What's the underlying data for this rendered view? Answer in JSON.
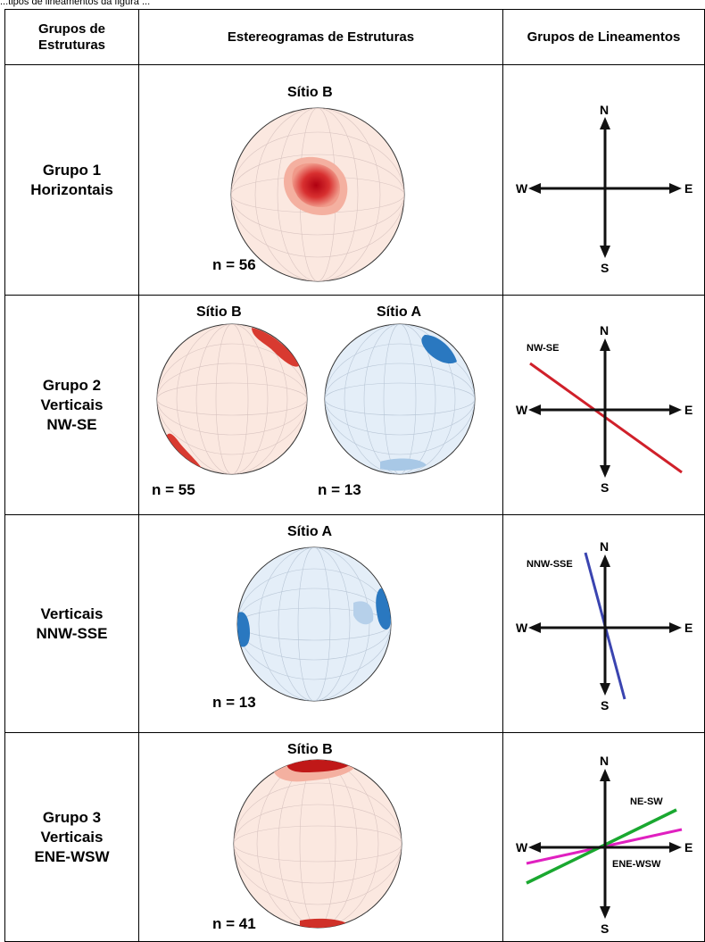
{
  "caption": "...tipos de lineamentos da figura ...",
  "headers": {
    "col1_line1": "Grupos de",
    "col1_line2": "Estruturas",
    "col2": "Estereogramas de Estruturas",
    "col3": "Grupos de Lineamentos"
  },
  "rows": [
    {
      "group_lines": [
        "Grupo 1",
        "Horizontais"
      ],
      "stereograms": [
        {
          "site": "Sítio B",
          "n": "n = 56",
          "color": "red"
        }
      ],
      "lineament": {
        "labels": [],
        "lines": []
      }
    },
    {
      "group_lines": [
        "Grupo 2",
        "Verticais",
        "NW-SE"
      ],
      "stereograms": [
        {
          "site": "Sítio B",
          "n": "n = 55",
          "color": "red"
        },
        {
          "site": "Sítio A",
          "n": "n = 13",
          "color": "blue"
        }
      ],
      "lineament": {
        "labels": [
          "NW-SE"
        ],
        "lines": [
          {
            "name": "NW-SE",
            "color": "#d0202a"
          }
        ]
      }
    },
    {
      "group_lines": [
        "Verticais",
        "NNW-SSE"
      ],
      "stereograms": [
        {
          "site": "Sítio A",
          "n": "n = 13",
          "color": "blue"
        }
      ],
      "lineament": {
        "labels": [
          "NNW-SSE"
        ],
        "lines": [
          {
            "name": "NNW-SSE",
            "color": "#3a44b0"
          }
        ]
      }
    },
    {
      "group_lines": [
        "Grupo 3",
        "Verticais",
        "ENE-WSW"
      ],
      "stereograms": [
        {
          "site": "Sítio B",
          "n": "n = 41",
          "color": "red"
        }
      ],
      "lineament": {
        "labels": [
          "NE-SW",
          "ENE-WSW"
        ],
        "lines": [
          {
            "name": "NE-SW",
            "color": "#1aa830"
          },
          {
            "name": "ENE-WSW",
            "color": "#e020c0"
          }
        ]
      }
    }
  ],
  "compass": {
    "n": "N",
    "s": "S",
    "e": "E",
    "w": "W"
  },
  "colors": {
    "red_fill": "#fbe8e0",
    "blue_fill": "#e4eef8",
    "grid": "#c9b8b8",
    "line_red": "#d0202a",
    "line_blue": "#3a44b0",
    "line_green": "#1aa830",
    "line_magenta": "#e020c0"
  }
}
